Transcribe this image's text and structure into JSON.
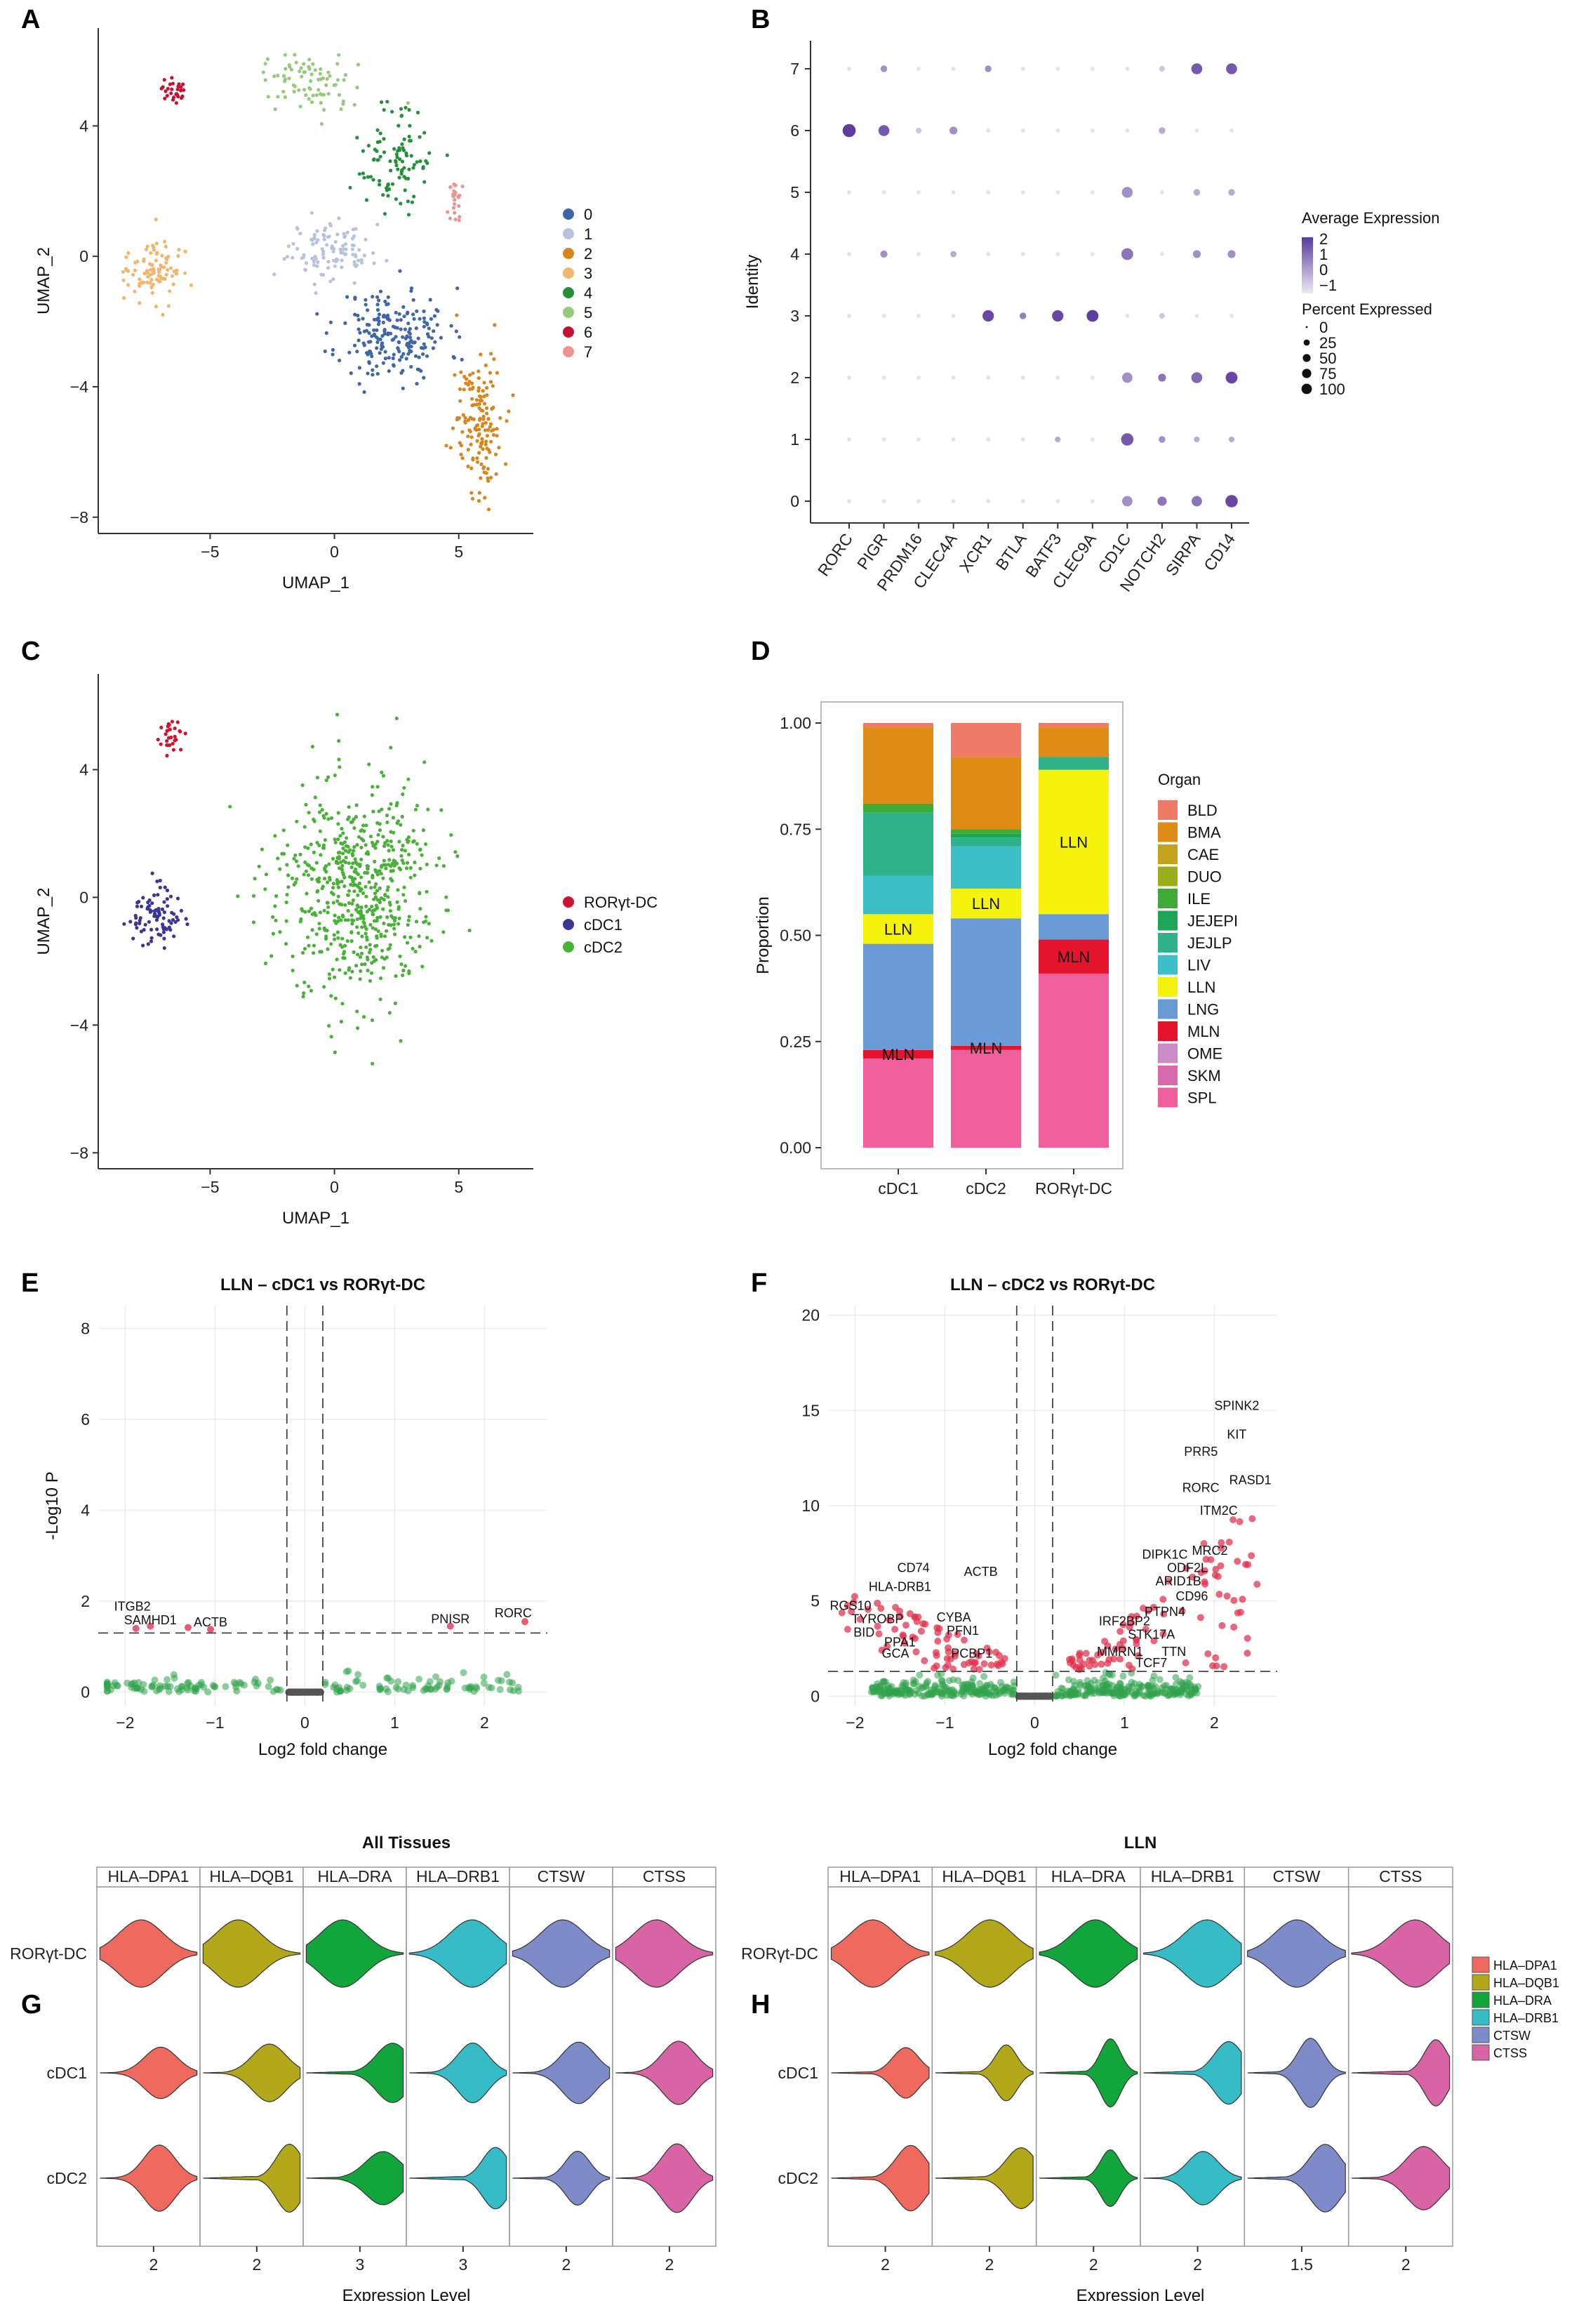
{
  "panels": {
    "A": {
      "label": "A",
      "chart_data": {
        "type": "scatter",
        "title": "",
        "xlabel": "UMAP_1",
        "ylabel": "UMAP_2",
        "xticks": [
          "-5",
          "0",
          "5"
        ],
        "yticks": [
          "4",
          "0",
          "-4",
          "-8"
        ],
        "xlim": [
          -9.5,
          8
        ],
        "ylim": [
          -8.5,
          7
        ],
        "legend": [
          "0",
          "1",
          "2",
          "3",
          "4",
          "5",
          "6",
          "7"
        ],
        "colors": [
          "#3f67a8",
          "#b7c3dd",
          "#d9851e",
          "#f2b56c",
          "#25903a",
          "#97c97a",
          "#c4112f",
          "#ec9290"
        ],
        "clusters": [
          {
            "name": "0",
            "cx": 2.4,
            "cy": -2.4,
            "sx": 2.0,
            "sy": 1.3,
            "n": 210
          },
          {
            "name": "1",
            "cx": -0.2,
            "cy": 0.2,
            "sx": 1.5,
            "sy": 0.8,
            "n": 110
          },
          {
            "name": "2",
            "cx": 5.8,
            "cy": -5.0,
            "sx": 0.9,
            "sy": 2.0,
            "n": 150
          },
          {
            "name": "3",
            "cx": -7.3,
            "cy": -0.4,
            "sx": 1.0,
            "sy": 0.9,
            "n": 90
          },
          {
            "name": "4",
            "cx": 2.5,
            "cy": 3.0,
            "sx": 1.2,
            "sy": 1.4,
            "n": 100
          },
          {
            "name": "5",
            "cx": -1.1,
            "cy": 5.4,
            "sx": 1.6,
            "sy": 0.8,
            "n": 80
          },
          {
            "name": "6",
            "cx": -6.5,
            "cy": 5.1,
            "sx": 0.4,
            "sy": 0.4,
            "n": 28
          },
          {
            "name": "7",
            "cx": 4.8,
            "cy": 1.7,
            "sx": 0.25,
            "sy": 0.6,
            "n": 22
          }
        ]
      }
    },
    "B": {
      "label": "B",
      "chart_data": {
        "type": "dot",
        "ylabel": "Identity",
        "genes": [
          "RORC",
          "PIGR",
          "PRDM16",
          "CLEC4A",
          "XCR1",
          "BTLA",
          "BATF3",
          "CLEC9A",
          "CD1C",
          "NOTCH2",
          "SIRPA",
          "CD14"
        ],
        "identities": [
          "7",
          "6",
          "5",
          "4",
          "3",
          "2",
          "1",
          "0"
        ],
        "pct_expressed": [
          [
            3,
            12,
            3,
            3,
            12,
            3,
            3,
            3,
            3,
            8,
            45,
            45
          ],
          [
            70,
            45,
            8,
            20,
            3,
            3,
            3,
            3,
            3,
            12,
            3,
            3
          ],
          [
            3,
            3,
            3,
            3,
            3,
            3,
            3,
            3,
            45,
            3,
            12,
            12
          ],
          [
            3,
            15,
            3,
            10,
            3,
            3,
            3,
            3,
            55,
            3,
            20,
            20
          ],
          [
            3,
            3,
            3,
            3,
            50,
            12,
            50,
            55,
            3,
            8,
            3,
            3
          ],
          [
            3,
            3,
            3,
            3,
            3,
            3,
            3,
            3,
            40,
            20,
            45,
            55
          ],
          [
            3,
            3,
            3,
            3,
            3,
            3,
            8,
            3,
            60,
            12,
            8,
            8
          ],
          [
            3,
            3,
            3,
            3,
            3,
            3,
            3,
            3,
            40,
            30,
            40,
            60
          ]
        ],
        "avg_expression": [
          [
            -1,
            0.5,
            -1,
            -1,
            0.5,
            -1,
            -1,
            -1,
            -1,
            -0.5,
            1.5,
            1.5
          ],
          [
            2,
            1.5,
            -0.5,
            0.5,
            -1,
            -1,
            -1,
            -1,
            -1,
            0,
            -1,
            -1
          ],
          [
            -1,
            -1,
            -1,
            -1,
            -1,
            -1,
            -1,
            -1,
            0.5,
            -1,
            0,
            0
          ],
          [
            -1,
            0.5,
            -1,
            0,
            -1,
            -1,
            -1,
            -1,
            1,
            -1,
            0.5,
            0.5
          ],
          [
            -1,
            -1,
            -1,
            -1,
            1.8,
            0.8,
            1.8,
            2,
            -1,
            -0.5,
            -1,
            -1
          ],
          [
            -1,
            -1,
            -1,
            -1,
            -1,
            -1,
            -1,
            -1,
            0.5,
            1,
            1.2,
            1.8
          ],
          [
            -1,
            -1,
            -1,
            -1,
            -1,
            -1,
            0,
            -1,
            1.5,
            0.5,
            0,
            0
          ],
          [
            -1,
            -1,
            -1,
            -1,
            -1,
            -1,
            -1,
            -1,
            0.5,
            1,
            1,
            1.8
          ]
        ],
        "legend_avg_title": "Average Expression",
        "legend_avg_ticks": [
          "2",
          "1",
          "0",
          "−1"
        ],
        "legend_pct_title": "Percent Expressed",
        "legend_pct_values": [
          "0",
          "25",
          "50",
          "75",
          "100"
        ]
      }
    },
    "C": {
      "label": "C",
      "chart_data": {
        "type": "scatter",
        "xlabel": "UMAP_1",
        "ylabel": "UMAP_2",
        "xticks": [
          "-5",
          "0",
          "5"
        ],
        "yticks": [
          "4",
          "0",
          "-4",
          "-8"
        ],
        "xlim": [
          -9.5,
          8
        ],
        "ylim": [
          -8.5,
          7
        ],
        "legend": [
          "RORγt-DC",
          "cDC1",
          "cDC2"
        ],
        "colors": [
          "#d0122f",
          "#3b3596",
          "#4ab138"
        ],
        "clusters": [
          {
            "name": "RORγt-DC",
            "cx": -6.5,
            "cy": 5.0,
            "sx": 0.4,
            "sy": 0.4,
            "n": 30
          },
          {
            "name": "cDC1",
            "cx": -7.3,
            "cy": -0.6,
            "sx": 1.0,
            "sy": 0.8,
            "n": 90
          },
          {
            "name": "cDC2",
            "cx": 0.8,
            "cy": 0.2,
            "sx": 2.9,
            "sy": 3.1,
            "n": 620
          }
        ]
      }
    },
    "D": {
      "label": "D",
      "chart_data": {
        "type": "bar",
        "stacked": true,
        "ylabel": "Proportion",
        "categories": [
          "cDC1",
          "cDC2",
          "RORγt-DC"
        ],
        "ylim": [
          0,
          1
        ],
        "yticks": [
          "0.00",
          "0.25",
          "0.50",
          "0.75",
          "1.00"
        ],
        "legend_title": "Organ",
        "series": [
          {
            "name": "BLD",
            "color": "#ef7a68",
            "values": [
              0.01,
              0.08,
              0.01
            ]
          },
          {
            "name": "BMA",
            "color": "#df8c17",
            "values": [
              0.18,
              0.17,
              0.07
            ]
          },
          {
            "name": "CAE",
            "color": "#c3a31b",
            "values": [
              0.0,
              0.0,
              0.0
            ]
          },
          {
            "name": "DUO",
            "color": "#9aae1c",
            "values": [
              0.0,
              0.0,
              0.0
            ]
          },
          {
            "name": "ILE",
            "color": "#3eac36",
            "values": [
              0.02,
              0.01,
              0.0
            ]
          },
          {
            "name": "JEJEPI",
            "color": "#1ea556",
            "values": [
              0.0,
              0.01,
              0.0
            ]
          },
          {
            "name": "JEJLP",
            "color": "#2fb28a",
            "values": [
              0.15,
              0.02,
              0.03
            ]
          },
          {
            "name": "LIV",
            "color": "#3dbfca",
            "values": [
              0.09,
              0.1,
              0.0
            ]
          },
          {
            "name": "LLN",
            "color": "#f5f20c",
            "values": [
              0.07,
              0.07,
              0.34
            ]
          },
          {
            "name": "LNG",
            "color": "#6b9bd6",
            "values": [
              0.25,
              0.3,
              0.06
            ]
          },
          {
            "name": "MLN",
            "color": "#e4142c",
            "values": [
              0.02,
              0.01,
              0.08
            ]
          },
          {
            "name": "OME",
            "color": "#c98ac6",
            "values": [
              0.0,
              0.0,
              0.0
            ]
          },
          {
            "name": "SKM",
            "color": "#d969ad",
            "values": [
              0.0,
              0.0,
              0.0
            ]
          },
          {
            "name": "SPL",
            "color": "#ef5f9b",
            "values": [
              0.21,
              0.23,
              0.41
            ]
          }
        ],
        "bar_labels": [
          {
            "bar": 0,
            "segment": "LLN",
            "text": "LLN"
          },
          {
            "bar": 0,
            "segment": "MLN",
            "text": "MLN"
          },
          {
            "bar": 1,
            "segment": "LLN",
            "text": "LLN"
          },
          {
            "bar": 1,
            "segment": "MLN",
            "text": "MLN"
          },
          {
            "bar": 2,
            "segment": "LLN",
            "text": "LLN"
          },
          {
            "bar": 2,
            "segment": "MLN",
            "text": "MLN"
          }
        ]
      }
    },
    "E": {
      "label": "E",
      "chart_data": {
        "type": "volcano",
        "title": "LLN – cDC1 vs RORγt-DC",
        "xlabel": "Log2 fold change",
        "ylabel": "-Log10 P",
        "xlim": [
          -2.3,
          2.7
        ],
        "ylim": [
          -0.3,
          8.5
        ],
        "xticks": [
          -2,
          -1,
          0,
          1,
          2
        ],
        "yticks": [
          0,
          2,
          4,
          6,
          8
        ],
        "vlines": [
          -0.2,
          0.2
        ],
        "hline": 1.3,
        "sig_points": [
          {
            "x": -1.88,
            "y": 1.4
          },
          {
            "x": -1.72,
            "y": 1.45
          },
          {
            "x": -1.3,
            "y": 1.42
          },
          {
            "x": -1.05,
            "y": 1.38
          },
          {
            "x": 1.62,
            "y": 1.45
          },
          {
            "x": 2.45,
            "y": 1.55
          }
        ],
        "annotations": [
          {
            "gene": "ITGB2",
            "x": -1.92,
            "y": 1.7
          },
          {
            "gene": "SAMHD1",
            "x": -1.72,
            "y": 1.4
          },
          {
            "gene": "ACTB",
            "x": -1.05,
            "y": 1.35
          },
          {
            "gene": "PNISR",
            "x": 1.62,
            "y": 1.42
          },
          {
            "gene": "RORC",
            "x": 2.32,
            "y": 1.55
          }
        ]
      }
    },
    "F": {
      "label": "F",
      "chart_data": {
        "type": "volcano",
        "title": "LLN – cDC2 vs RORγt-DC",
        "xlabel": "Log2 fold change",
        "ylabel": "",
        "xlim": [
          -2.3,
          2.7
        ],
        "ylim": [
          -0.5,
          20.5
        ],
        "xticks": [
          -2,
          -1,
          0,
          1,
          2
        ],
        "yticks": [
          0,
          5,
          10,
          15,
          20
        ],
        "vlines": [
          -0.2,
          0.2
        ],
        "hline": 1.3,
        "annotations": [
          {
            "gene": "SPINK2",
            "x": 2.25,
            "y": 14.8
          },
          {
            "gene": "KIT",
            "x": 2.25,
            "y": 13.3
          },
          {
            "gene": "PRR5",
            "x": 1.85,
            "y": 12.4
          },
          {
            "gene": "RASD1",
            "x": 2.4,
            "y": 10.9
          },
          {
            "gene": "RORC",
            "x": 1.85,
            "y": 10.5
          },
          {
            "gene": "ITM2C",
            "x": 2.05,
            "y": 9.3
          },
          {
            "gene": "DIPK1C",
            "x": 1.45,
            "y": 7.0
          },
          {
            "gene": "MRC2",
            "x": 1.95,
            "y": 7.2
          },
          {
            "gene": "ODF2L",
            "x": 1.7,
            "y": 6.3
          },
          {
            "gene": "ARID1B",
            "x": 1.6,
            "y": 5.6
          },
          {
            "gene": "CD96",
            "x": 1.75,
            "y": 4.8
          },
          {
            "gene": "PTPN4",
            "x": 1.45,
            "y": 4.0
          },
          {
            "gene": "IRF2BP2",
            "x": 1.0,
            "y": 3.5
          },
          {
            "gene": "STK17A",
            "x": 1.3,
            "y": 2.8
          },
          {
            "gene": "MMRN1",
            "x": 0.95,
            "y": 1.9
          },
          {
            "gene": "TTN",
            "x": 1.55,
            "y": 1.9
          },
          {
            "gene": "TCF7",
            "x": 1.3,
            "y": 1.3
          },
          {
            "gene": "CD74",
            "x": -1.35,
            "y": 6.3
          },
          {
            "gene": "ACTB",
            "x": -0.6,
            "y": 6.1
          },
          {
            "gene": "HLA-DRB1",
            "x": -1.5,
            "y": 5.3
          },
          {
            "gene": "RGS10",
            "x": -2.05,
            "y": 4.3
          },
          {
            "gene": "TYROBP",
            "x": -1.75,
            "y": 3.6
          },
          {
            "gene": "BID",
            "x": -1.9,
            "y": 2.9
          },
          {
            "gene": "CYBA",
            "x": -0.9,
            "y": 3.7
          },
          {
            "gene": "PFN1",
            "x": -0.8,
            "y": 3.0
          },
          {
            "gene": "PPA1",
            "x": -1.5,
            "y": 2.4
          },
          {
            "gene": "GCA",
            "x": -1.55,
            "y": 1.8
          },
          {
            "gene": "PCBP1",
            "x": -0.7,
            "y": 1.8
          }
        ]
      }
    },
    "G": {
      "label": "G",
      "chart_data": {
        "type": "violin",
        "title": "All Tissues",
        "xlabel": "Expression Level",
        "genes": [
          "HLA–DPA1",
          "HLA–DQB1",
          "HLA–DRA",
          "HLA–DRB1",
          "CTSW",
          "CTSS"
        ],
        "cell_types": [
          "RORγt-DC",
          "cDC1",
          "cDC2"
        ],
        "gene_ticks": [
          "2",
          "2",
          "3",
          "3",
          "2",
          "2"
        ]
      }
    },
    "H": {
      "label": "H",
      "chart_data": {
        "type": "violin",
        "title": "LLN",
        "xlabel": "Expression Level",
        "genes": [
          "HLA–DPA1",
          "HLA–DQB1",
          "HLA–DRA",
          "HLA–DRB1",
          "CTSW",
          "CTSS"
        ],
        "cell_types": [
          "RORγt-DC",
          "cDC1",
          "cDC2"
        ],
        "gene_ticks": [
          "2",
          "2",
          "2",
          "2",
          "1.5",
          "2"
        ]
      }
    }
  },
  "gh_legend": {
    "items": [
      "HLA–DPA1",
      "HLA–DQB1",
      "HLA–DRA",
      "HLA–DRB1",
      "CTSW",
      "CTSS"
    ],
    "colors": [
      "#ee6a5e",
      "#b3a81a",
      "#12a53b",
      "#35bcc6",
      "#7d8cc9",
      "#d864a6"
    ]
  }
}
